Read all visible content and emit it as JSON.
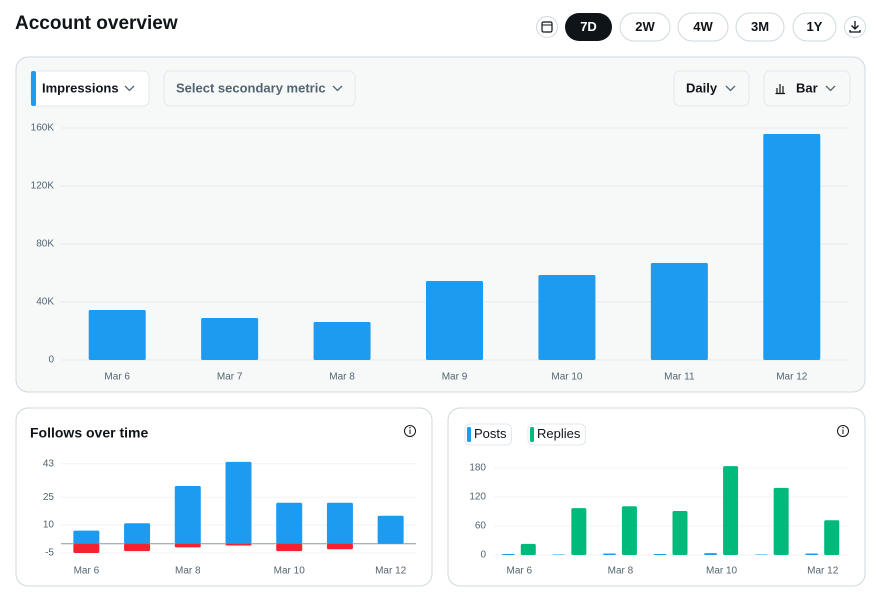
{
  "header": {
    "title": "Account overview",
    "ranges": [
      "7D",
      "2W",
      "4W",
      "3M",
      "1Y"
    ]
  },
  "controls": {
    "primary_metric": "Impressions",
    "secondary_metric": "Select secondary metric",
    "interval": "Daily",
    "chart_type": "Bar"
  },
  "chart_data": [
    {
      "type": "bar",
      "categories": [
        "Mar 6",
        "Mar 7",
        "Mar 8",
        "Mar 9",
        "Mar 10",
        "Mar 11",
        "Mar 12"
      ],
      "values": [
        34500,
        29000,
        26200,
        54500,
        58600,
        66900,
        155900
      ],
      "color": "#1d9bf0",
      "ylim": [
        0,
        160000
      ],
      "yticks": [
        0,
        {
          "value": 40000,
          "label": "40K"
        },
        {
          "value": 80000,
          "label": "80K"
        },
        {
          "value": 120000,
          "label": "120K"
        },
        {
          "value": 160000,
          "label": "160K"
        }
      ],
      "grid": true
    },
    {
      "type": "bar",
      "title": "Follows over time",
      "barmode": "overlay",
      "categories": [
        "Mar 6",
        null,
        "Mar 8",
        null,
        "Mar 10",
        null,
        "Mar 12"
      ],
      "series": [
        {
          "color": "#1d9bf0",
          "values": [
            7,
            11,
            31,
            44,
            22,
            22,
            15
          ]
        },
        {
          "color": "#f4212e",
          "values": [
            -5,
            -4,
            -2,
            -1,
            -4,
            -3,
            0
          ]
        }
      ],
      "ylim": [
        -5,
        45
      ],
      "yticks": [
        -5,
        10,
        25,
        43
      ],
      "grid": true
    },
    {
      "type": "bar",
      "barmode": "group",
      "categories": [
        "Mar 6",
        null,
        "Mar 8",
        null,
        "Mar 10",
        null,
        "Mar 12"
      ],
      "series": [
        {
          "name": "Posts",
          "color": "#1d9bf0",
          "values": [
            2,
            1,
            3,
            2,
            4,
            1,
            3
          ]
        },
        {
          "name": "Replies",
          "color": "#00ba7c",
          "values": [
            23,
            97,
            101,
            91,
            184,
            139,
            72
          ]
        }
      ],
      "ylim": [
        0,
        185
      ],
      "yticks": [
        0,
        60,
        120,
        180
      ],
      "grid": true
    }
  ]
}
